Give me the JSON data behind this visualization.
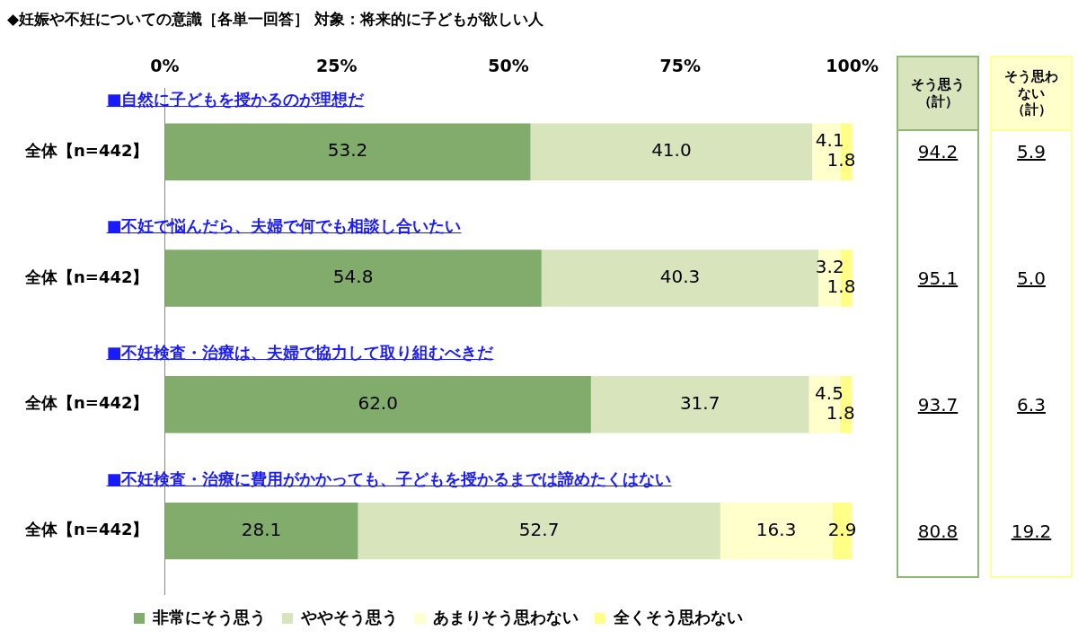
{
  "chart_data": {
    "type": "bar",
    "orientation": "horizontal",
    "stacked": true,
    "title": "◆妊娠や不妊についての意識［各単一回答］ 対象：将来的に子どもが欲しい人",
    "categories": [
      "全体【n=442】",
      "全体【n=442】",
      "全体【n=442】",
      "全体【n=442】"
    ],
    "series": [
      {
        "name": "非常にそう思う",
        "color": "#82ac6c",
        "values": [
          53.2,
          54.8,
          62.0,
          28.1
        ],
        "value_labels": [
          "53.2",
          "54.8",
          "62.0",
          "28.1"
        ]
      },
      {
        "name": "ややそう思う",
        "color": "#d8e4bc",
        "values": [
          41.0,
          40.3,
          31.7,
          52.7
        ],
        "value_labels": [
          "41.0",
          "40.3",
          "31.7",
          "52.7"
        ]
      },
      {
        "name": "あまりそう思わない",
        "color": "#ffffcc",
        "values": [
          4.1,
          3.2,
          4.5,
          16.3
        ],
        "value_labels": [
          "4.1",
          "3.2",
          "4.5",
          "16.3"
        ]
      },
      {
        "name": "全くそう思わない",
        "color": "#ffff88",
        "values": [
          1.8,
          1.8,
          1.8,
          2.9
        ],
        "value_labels": [
          "1.8",
          "1.8",
          "1.8",
          "2.9"
        ]
      }
    ],
    "xlim": [
      0,
      100
    ],
    "xticks": [
      {
        "value": 0,
        "label": "0%"
      },
      {
        "value": 25,
        "label": "25%"
      },
      {
        "value": 50,
        "label": "50%"
      },
      {
        "value": 75,
        "label": "75%"
      },
      {
        "value": 100,
        "label": "100%"
      }
    ],
    "legend": "bottom",
    "annotations": [
      "■自然に子どもを授かるのが理想だ",
      "■不妊で悩んだら、夫婦で何でも相談し合いたい",
      "■不妊検査・治療は、夫婦で協力して取り組むべきだ",
      "■不妊検査・治療に費用がかかっても、子どもを授かるまでは諦めたくはない",
      "そう思う（計）",
      "そう思わない（計）",
      "94.2",
      "5.9",
      "95.1",
      "5.0",
      "93.7",
      "6.3",
      "80.8",
      "19.2"
    ]
  }
}
